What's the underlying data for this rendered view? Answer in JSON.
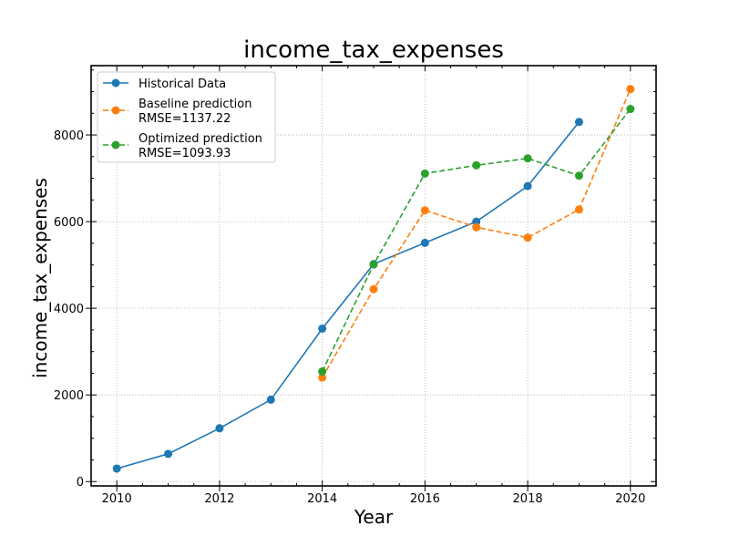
{
  "chart_data": {
    "type": "line",
    "title": "income_tax_expenses",
    "xlabel": "Year",
    "ylabel": "income_tax_expenses",
    "xlim": [
      2009.5,
      2020.5
    ],
    "ylim": [
      -100,
      9600
    ],
    "xticks": [
      2010,
      2012,
      2014,
      2016,
      2018,
      2020
    ],
    "yticks": [
      0,
      2000,
      4000,
      6000,
      8000
    ],
    "grid": true,
    "legend_position": "top-left",
    "series": [
      {
        "name": "Historical Data",
        "color": "#1f77b4",
        "dashed": false,
        "x": [
          2010,
          2011,
          2012,
          2013,
          2014,
          2015,
          2016,
          2017,
          2018,
          2019
        ],
        "y": [
          300,
          640,
          1230,
          1890,
          3530,
          5020,
          5510,
          6000,
          6820,
          8300
        ]
      },
      {
        "name": "Baseline prediction",
        "legend_lines": [
          "Baseline prediction",
          "RMSE=1137.22"
        ],
        "color": "#ff7f0e",
        "dashed": true,
        "x": [
          2014,
          2015,
          2016,
          2017,
          2018,
          2019,
          2020
        ],
        "y": [
          2400,
          4440,
          6260,
          5870,
          5630,
          6280,
          9060
        ]
      },
      {
        "name": "Optimized prediction",
        "legend_lines": [
          "Optimized prediction",
          "RMSE=1093.93"
        ],
        "color": "#2ca02c",
        "dashed": true,
        "x": [
          2014,
          2015,
          2016,
          2017,
          2018,
          2019,
          2020
        ],
        "y": [
          2540,
          5010,
          7110,
          7300,
          7460,
          7060,
          8600
        ]
      }
    ]
  }
}
